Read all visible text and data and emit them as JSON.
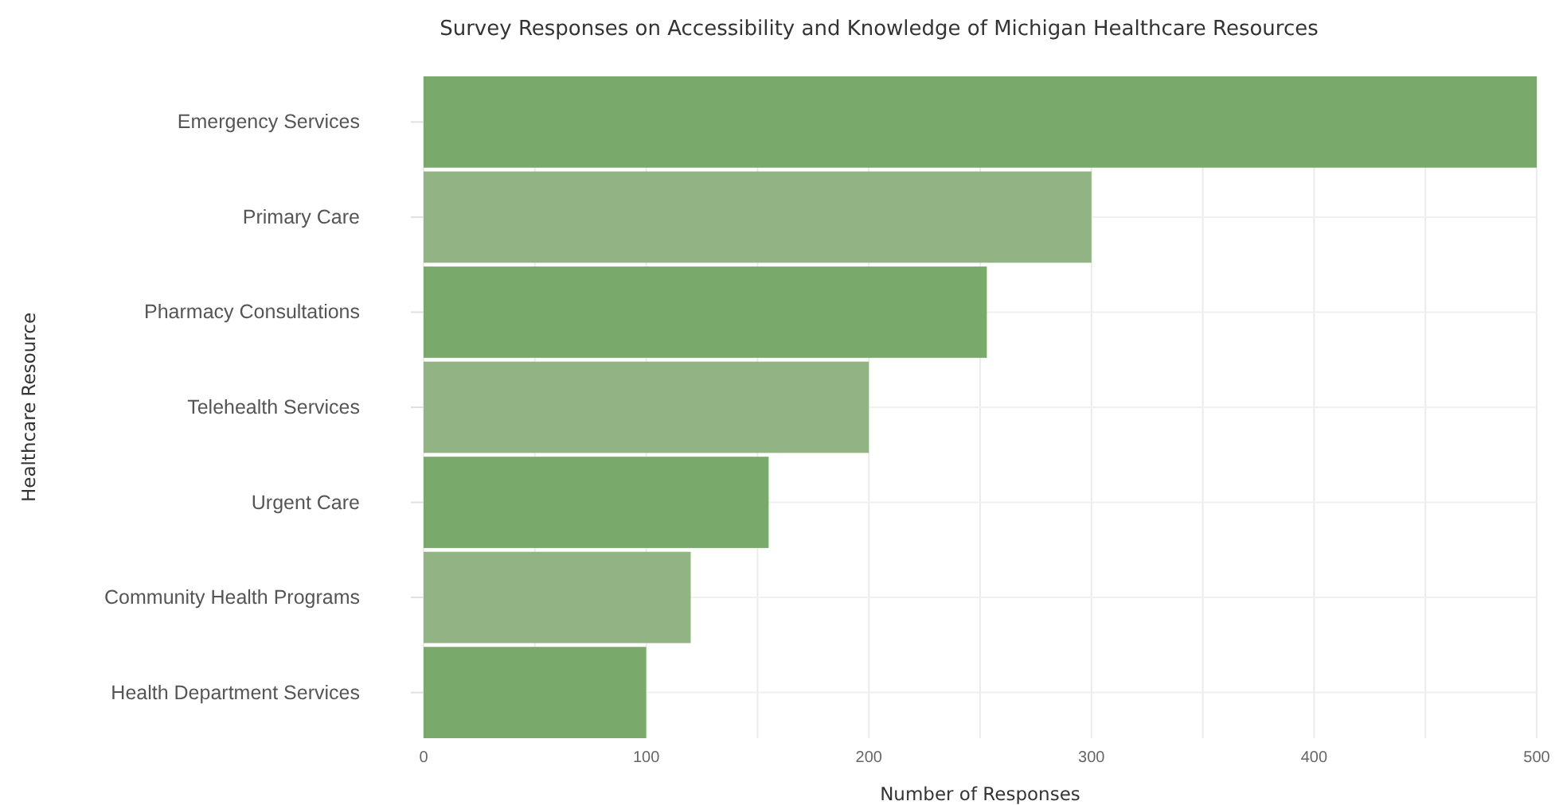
{
  "chart_data": {
    "type": "bar",
    "orientation": "horizontal",
    "title": "Survey Responses on Accessibility and Knowledge of Michigan Healthcare Resources",
    "xlabel": "Number of Responses",
    "ylabel": "Healthcare Resource",
    "categories": [
      "Emergency Services",
      "Primary Care",
      "Pharmacy Consultations",
      "Telehealth Services",
      "Urgent Care",
      "Community Health Programs",
      "Health Department Services"
    ],
    "values": [
      500,
      300,
      253,
      200,
      155,
      120,
      100
    ],
    "colors": [
      "#7aa96c",
      "#92b485",
      "#7aa96c",
      "#92b485",
      "#7aa96c",
      "#92b485",
      "#7aa96c"
    ],
    "xlim": [
      0,
      500
    ],
    "xticks": [
      0,
      {
        "value": 50,
        "label": null
      },
      100,
      {
        "value": 150,
        "label": null
      },
      200,
      {
        "value": 250,
        "label": null
      },
      300,
      {
        "value": 350,
        "label": null
      },
      400,
      {
        "value": 450,
        "label": null
      },
      500
    ],
    "grid": true
  }
}
